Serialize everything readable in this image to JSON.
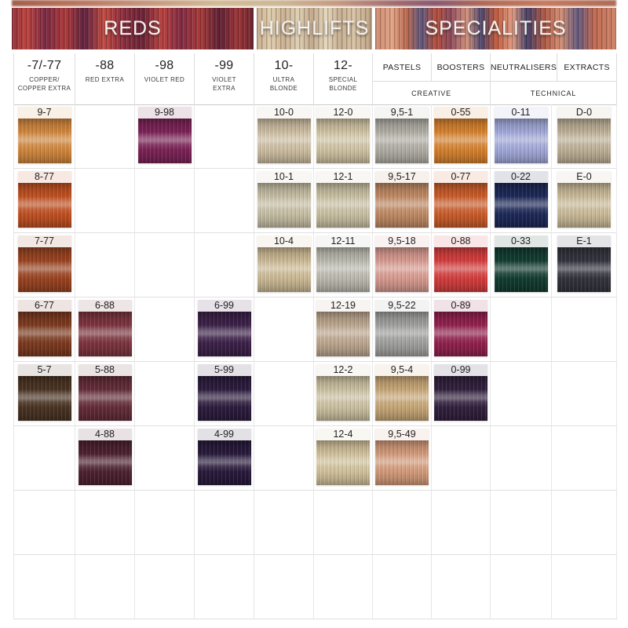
{
  "banner": {
    "sections": [
      {
        "title": "REDS"
      },
      {
        "title": "HIGHLIFTS"
      },
      {
        "title": "SPECIALITIES"
      }
    ]
  },
  "header": {
    "shade_columns": [
      {
        "code": "-7/-77",
        "name": [
          "COPPER/",
          "COPPER EXTRA"
        ]
      },
      {
        "code": "-88",
        "name": [
          "RED EXTRA"
        ]
      },
      {
        "code": "-98",
        "name": [
          "VIOLET RED"
        ]
      },
      {
        "code": "-99",
        "name": [
          "VIOLET",
          "EXTRA"
        ]
      },
      {
        "code": "10-",
        "name": [
          "ULTRA",
          "BLONDE"
        ]
      },
      {
        "code": "12-",
        "name": [
          "SPECIAL",
          "BLONDE"
        ]
      }
    ],
    "specialty_groups": [
      {
        "columns": [
          "PASTELS",
          "BOOSTERS"
        ],
        "category": "CREATIVE"
      },
      {
        "columns": [
          "NEUTRALISERS",
          "EXTRACTS"
        ],
        "category": "TECHNICAL"
      }
    ]
  },
  "grid": {
    "rows": 8,
    "cols": 10
  },
  "swatches": [
    {
      "code": "9-7",
      "color": "#d4883c",
      "row": 1,
      "col": 1
    },
    {
      "code": "9-98",
      "color": "#7d2257",
      "row": 1,
      "col": 3
    },
    {
      "code": "10-0",
      "color": "#cfc0a4",
      "row": 1,
      "col": 5
    },
    {
      "code": "12-0",
      "color": "#d2c5a4",
      "row": 1,
      "col": 6
    },
    {
      "code": "9,5-1",
      "color": "#b2afa6",
      "row": 1,
      "col": 7
    },
    {
      "code": "0-55",
      "color": "#d9822c",
      "row": 1,
      "col": 8
    },
    {
      "code": "0-11",
      "color": "#a3aadb",
      "row": 1,
      "col": 9
    },
    {
      "code": "D-0",
      "color": "#bfb299",
      "row": 1,
      "col": 10
    },
    {
      "code": "8-77",
      "color": "#c35020",
      "row": 2,
      "col": 1
    },
    {
      "code": "10-1",
      "color": "#c8c0a6",
      "row": 2,
      "col": 5
    },
    {
      "code": "12-1",
      "color": "#cbc2a4",
      "row": 2,
      "col": 6
    },
    {
      "code": "9,5-17",
      "color": "#c08b66",
      "row": 2,
      "col": 7
    },
    {
      "code": "0-77",
      "color": "#cd5c28",
      "row": 2,
      "col": 8
    },
    {
      "code": "0-22",
      "color": "#1c2858",
      "row": 2,
      "col": 9
    },
    {
      "code": "E-0",
      "color": "#cbbc9a",
      "row": 2,
      "col": 10
    },
    {
      "code": "7-77",
      "color": "#9c431f",
      "row": 3,
      "col": 1
    },
    {
      "code": "10-4",
      "color": "#cdbb96",
      "row": 3,
      "col": 5
    },
    {
      "code": "12-11",
      "color": "#bdbbb0",
      "row": 3,
      "col": 6
    },
    {
      "code": "9,5-18",
      "color": "#d89c92",
      "row": 3,
      "col": 7
    },
    {
      "code": "0-88",
      "color": "#d83c3c",
      "row": 3,
      "col": 8
    },
    {
      "code": "0-33",
      "color": "#123c30",
      "row": 3,
      "col": 9
    },
    {
      "code": "E-1",
      "color": "#33333e",
      "row": 3,
      "col": 10
    },
    {
      "code": "6-77",
      "color": "#7e3a1e",
      "row": 4,
      "col": 1
    },
    {
      "code": "6-88",
      "color": "#7e343f",
      "row": 4,
      "col": 2
    },
    {
      "code": "6-99",
      "color": "#3c2149",
      "row": 4,
      "col": 4
    },
    {
      "code": "12-19",
      "color": "#bfa890",
      "row": 4,
      "col": 6
    },
    {
      "code": "9,5-22",
      "color": "#a2a2a0",
      "row": 4,
      "col": 7
    },
    {
      "code": "0-89",
      "color": "#94204e",
      "row": 4,
      "col": 8
    },
    {
      "code": "5-7",
      "color": "#4a3322",
      "row": 5,
      "col": 1
    },
    {
      "code": "5-88",
      "color": "#642c38",
      "row": 5,
      "col": 2
    },
    {
      "code": "5-99",
      "color": "#2c1c3e",
      "row": 5,
      "col": 4
    },
    {
      "code": "12-2",
      "color": "#cdc2a2",
      "row": 5,
      "col": 6
    },
    {
      "code": "9,5-4",
      "color": "#c8a878",
      "row": 5,
      "col": 7
    },
    {
      "code": "0-99",
      "color": "#32203e",
      "row": 5,
      "col": 8
    },
    {
      "code": "4-88",
      "color": "#4e2130",
      "row": 6,
      "col": 2
    },
    {
      "code": "4-99",
      "color": "#281a3c",
      "row": 6,
      "col": 4
    },
    {
      "code": "12-4",
      "color": "#d4c39c",
      "row": 6,
      "col": 6
    },
    {
      "code": "9,5-49",
      "color": "#d49c7c",
      "row": 6,
      "col": 7
    }
  ]
}
